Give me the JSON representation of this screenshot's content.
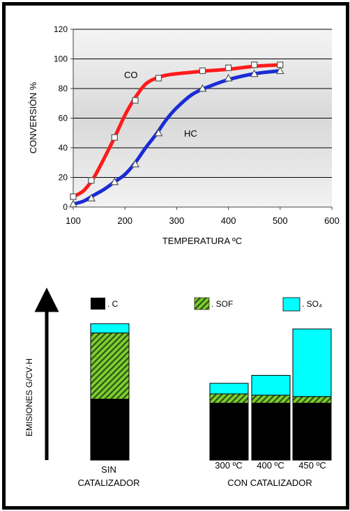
{
  "chart_data": [
    {
      "type": "line",
      "title": "",
      "xlabel": "TEMPERATURA ºC",
      "ylabel": "CONVERSIÓN %",
      "xlim": [
        100,
        600
      ],
      "ylim": [
        0,
        120
      ],
      "xticks": [
        100,
        200,
        300,
        400,
        500,
        600
      ],
      "yticks": [
        0,
        20,
        40,
        60,
        80,
        100,
        120
      ],
      "grid": true,
      "series": [
        {
          "name": "CO",
          "color": "#ff1a1a",
          "marker": "square",
          "x": [
            100,
            135,
            180,
            220,
            265,
            350,
            400,
            450,
            500
          ],
          "y": [
            7,
            18,
            47,
            72,
            87,
            92,
            94,
            96,
            96
          ],
          "curve_x": [
            100,
            120,
            140,
            160,
            180,
            200,
            220,
            240,
            260,
            280,
            300,
            330,
            360,
            400,
            450,
            500
          ],
          "curve_y": [
            7,
            11,
            20,
            33,
            47,
            62,
            74,
            83,
            87,
            89,
            90,
            91,
            92,
            93,
            95,
            96
          ]
        },
        {
          "name": "HC",
          "color": "#1a2bd6",
          "marker": "triangle",
          "x": [
            100,
            135,
            180,
            220,
            265,
            350,
            400,
            450,
            500
          ],
          "y": [
            2,
            6,
            17,
            29,
            50,
            80,
            87,
            90,
            92
          ],
          "curve_x": [
            100,
            120,
            140,
            160,
            180,
            200,
            220,
            240,
            260,
            280,
            300,
            330,
            360,
            400,
            450,
            500
          ],
          "curve_y": [
            2,
            4,
            8,
            12,
            17,
            22,
            30,
            40,
            49,
            59,
            67,
            76,
            81,
            86,
            90,
            92
          ]
        }
      ]
    },
    {
      "type": "bar",
      "stacked": true,
      "ylabel": "EMISIONES G/CV·H",
      "legend": [
        {
          "label": ". C",
          "color": "#000000",
          "pattern": "solid"
        },
        {
          "label": ". SOF",
          "color": "#7ccf2c",
          "pattern": "hatch"
        },
        {
          "label": ". SO₄",
          "color": "#00ffff",
          "pattern": "solid"
        }
      ],
      "bars": [
        {
          "label": "SIN",
          "C": 46,
          "SOF": 50,
          "SO4": 7
        },
        {
          "label": "300 ºC",
          "C": 43,
          "SOF": 7,
          "SO4": 8
        },
        {
          "label": "400 ºC",
          "C": 43,
          "SOF": 6,
          "SO4": 15
        },
        {
          "label": "450 ºC",
          "C": 43,
          "SOF": 5,
          "SO4": 51
        }
      ],
      "group_labels": [
        "CATALIZADOR",
        "CON CATALIZADOR"
      ]
    }
  ]
}
